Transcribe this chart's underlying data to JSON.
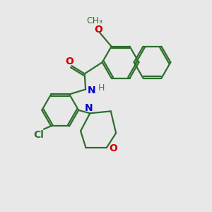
{
  "bg_color": "#e8e8e8",
  "bond_color": "#2d6e2d",
  "bond_width": 1.6,
  "atom_colors": {
    "O": "#cc0000",
    "N": "#0000cc",
    "Cl": "#2d6e2d",
    "H": "#666666"
  },
  "font_size": 10,
  "fig_size": [
    3.0,
    3.0
  ],
  "dpi": 100
}
